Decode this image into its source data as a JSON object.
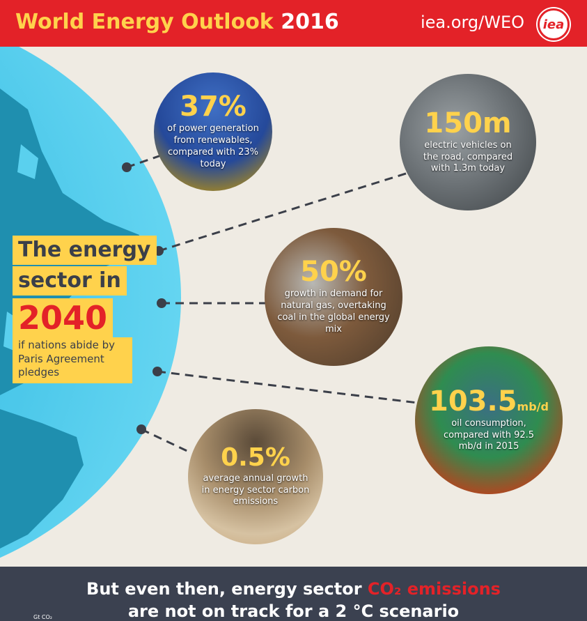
{
  "header": {
    "title": "World Energy Outlook",
    "year": "2016",
    "url": "iea.org/WEO",
    "logo": "iea"
  },
  "callout": {
    "line1": "The energy",
    "line2": "sector in",
    "year": "2040",
    "sub": "if nations abide by Paris Agreement pledges"
  },
  "facts": [
    {
      "value": "37%",
      "unit": "",
      "text": "of power generation from renewables, compared with 23% today",
      "image": "wind-turbine-wheat-field"
    },
    {
      "value": "150m",
      "unit": "",
      "text": "electric vehicles on the road, compared with 1.3m today",
      "image": "electric-vehicle-charging"
    },
    {
      "value": "50%",
      "unit": "",
      "text": "growth in demand for natural gas, overtaking coal in the global energy mix",
      "image": "pressure-gauge"
    },
    {
      "value": "103.5",
      "unit": "mb/d",
      "text": "oil consumption, compared with 92.5 mb/d in 2015",
      "image": "oil-barrels"
    },
    {
      "value": "0.5%",
      "unit": "",
      "text": "average annual growth in energy sector carbon emissions",
      "image": "smokestacks"
    }
  ],
  "footer": {
    "prefix": "But even then, energy sector ",
    "highlight": "CO₂ emissions",
    "line2": "are not on track for a 2 °C scenario",
    "unit_label": "Gt CO₂"
  },
  "colors": {
    "header_red": "#e32228",
    "accent_yellow": "#ffd24c",
    "background": "#efebe3",
    "footer": "#3b4150",
    "globe_ocean": "#5ad0ee"
  }
}
